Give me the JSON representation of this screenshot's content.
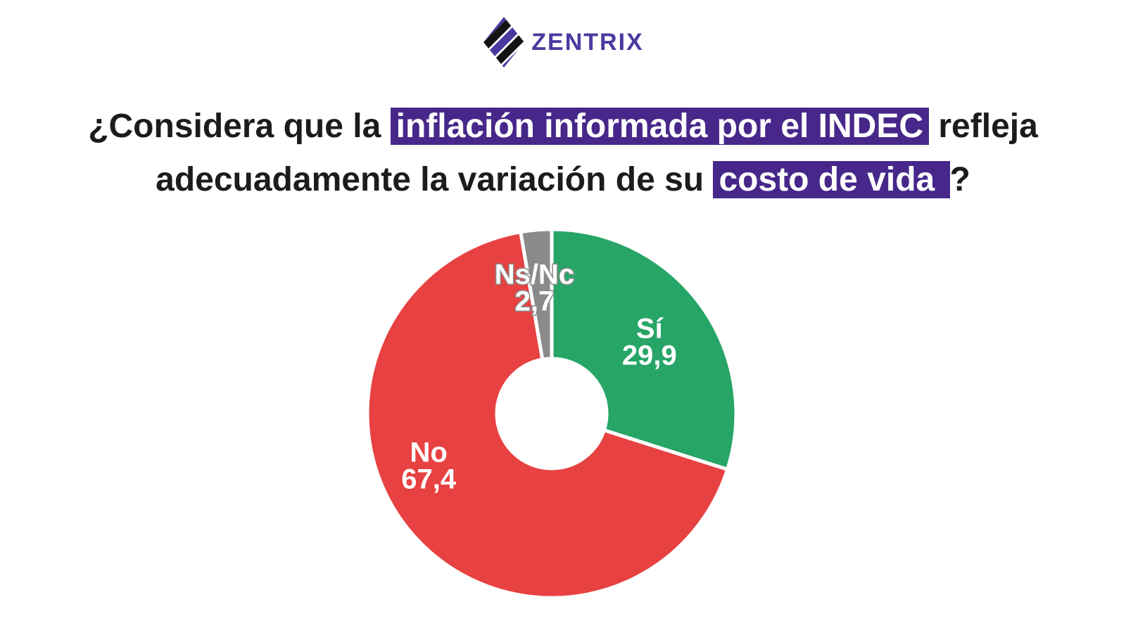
{
  "brand": {
    "name": "ZENTRIX",
    "color": "#4a3aa0",
    "icon": "striped-diamond-logo"
  },
  "question": {
    "part1": "¿Considera que la ",
    "highlight1": "inflación informada por el INDEC",
    "part2": " refleja",
    "part3": "adecuadamente la variación de su ",
    "highlight2": "costo de vida ",
    "part4": "?",
    "highlight_color": "#47288a"
  },
  "chart_data": {
    "type": "pie",
    "donut": true,
    "start_angle_deg": 0,
    "direction": "clockwise",
    "slices": [
      {
        "label": "Sí",
        "value": 29.9,
        "display": "29,9",
        "color": "#27a566"
      },
      {
        "label": "No",
        "value": 67.4,
        "display": "67,4",
        "color": "#e84141"
      },
      {
        "label": "Ns/Nc",
        "value": 2.7,
        "display": "2,7",
        "color": "#8a8a8a"
      }
    ],
    "title": "",
    "legend": "none"
  }
}
